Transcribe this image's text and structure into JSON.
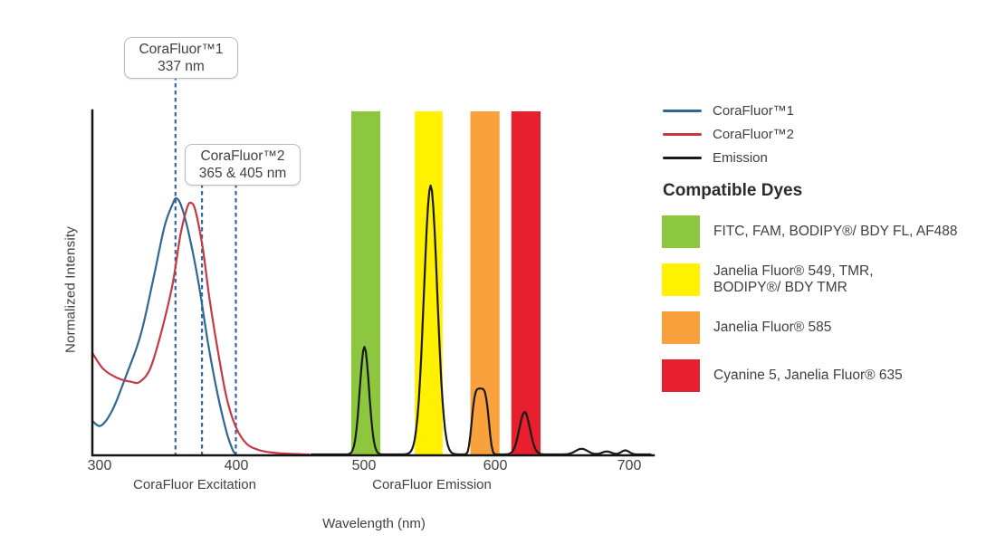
{
  "figure": {
    "y_axis_label": "Normalized Intensity",
    "x_axis_label": "Wavelength (nm)",
    "x_section_labels": {
      "excitation": "CoraFluor Excitation",
      "emission": "CoraFluor Emission"
    },
    "ticks": [
      "300",
      "400",
      "500",
      "600",
      "700"
    ]
  },
  "annotations": [
    {
      "title": "CoraFluor™1",
      "subtitle": "337 nm",
      "lines_nm": [
        357.3
      ]
    },
    {
      "title": "CoraFluor™2",
      "subtitle": "365 & 405 nm",
      "lines_nm": [
        377.3,
        402.9
      ]
    }
  ],
  "legend": {
    "items": [
      {
        "label": "CoraFluor™1",
        "color": "#2F6795"
      },
      {
        "label": "CoraFluor™2",
        "color": "#C63944"
      },
      {
        "label": "Emission",
        "color": "#1A1A1A"
      }
    ]
  },
  "compatible_dyes": {
    "heading": "Compatible Dyes",
    "items": [
      {
        "color": "#8DC63F",
        "label": "FITC, FAM, BODIPY®/ BDY FL, AF488",
        "label2": ""
      },
      {
        "color": "#FFF100",
        "label": "Janelia Fluor® 549, TMR,",
        "label2": "BODIPY®/ BDY TMR"
      },
      {
        "color": "#F9A13C",
        "label": "Janelia Fluor® 585",
        "label2": ""
      },
      {
        "color": "#E8202E",
        "label": "Cyanine 5, Janelia Fluor® 635",
        "label2": ""
      }
    ]
  },
  "chart_data": {
    "type": "line",
    "title": "",
    "xlabel": "Wavelength (nm)",
    "ylabel": "Normalized Intensity",
    "x_range_nm": [
      295,
      717
    ],
    "x_ticks_nm": [
      300,
      400,
      500,
      600,
      700
    ],
    "ylim": [
      0,
      1.05
    ],
    "grid": false,
    "legend_position": "right",
    "axis_color": "#141414",
    "dashed_line_color": "#31699E",
    "excitation_maxima_labels": {
      "CoraFluor1": "337 nm",
      "CoraFluor2": "365 & 405 nm"
    },
    "emission_peaks_nm": [
      500,
      550,
      587,
      621,
      664,
      683,
      697
    ],
    "filter_bands": [
      {
        "dyes": "FITC, FAM, BODIPY®/ BDY FL, AF488",
        "from_nm": 490,
        "to_nm": 512,
        "color": "#8DC63F"
      },
      {
        "dyes": "Janelia Fluor® 549, TMR, BODIPY®/ BDY TMR",
        "from_nm": 538,
        "to_nm": 559,
        "color": "#FFF100"
      },
      {
        "dyes": "Janelia Fluor® 585",
        "from_nm": 580,
        "to_nm": 602,
        "color": "#F9A13C"
      },
      {
        "dyes": "Cyanine 5, Janelia Fluor® 635",
        "from_nm": 611,
        "to_nm": 633,
        "color": "#E8202E"
      }
    ],
    "series": [
      {
        "name": "CoraFluor™1 excitation",
        "color": "#2F6795",
        "points": [
          [
            294.5,
            0.125
          ],
          [
            301,
            0.107
          ],
          [
            310,
            0.168
          ],
          [
            320,
            0.293
          ],
          [
            331,
            0.444
          ],
          [
            341,
            0.663
          ],
          [
            349,
            0.848
          ],
          [
            355,
            0.929
          ],
          [
            358,
            0.953
          ],
          [
            362,
            0.92
          ],
          [
            368,
            0.808
          ],
          [
            375,
            0.63
          ],
          [
            382,
            0.411
          ],
          [
            389,
            0.226
          ],
          [
            396,
            0.081
          ],
          [
            400.5,
            0.017
          ],
          [
            403,
            0
          ]
        ]
      },
      {
        "name": "CoraFluor™2 excitation",
        "color": "#C63944",
        "points": [
          [
            294.5,
            0.378
          ],
          [
            303,
            0.317
          ],
          [
            314,
            0.283
          ],
          [
            324,
            0.27
          ],
          [
            330,
            0.269
          ],
          [
            338,
            0.317
          ],
          [
            346,
            0.444
          ],
          [
            355,
            0.63
          ],
          [
            361,
            0.815
          ],
          [
            366,
            0.916
          ],
          [
            369,
            0.936
          ],
          [
            372.5,
            0.905
          ],
          [
            378,
            0.764
          ],
          [
            383,
            0.579
          ],
          [
            389,
            0.394
          ],
          [
            396,
            0.209
          ],
          [
            403,
            0.101
          ],
          [
            411,
            0.04
          ],
          [
            420,
            0.017
          ],
          [
            430,
            0.007
          ],
          [
            444,
            0.002
          ],
          [
            458,
            0
          ]
        ]
      },
      {
        "name": "Emission",
        "color": "#1A1A1A",
        "peaks": [
          {
            "center_nm": 500,
            "height": 0.4,
            "sigma_nm": 3.5
          },
          {
            "center_nm": 550,
            "height": 1.0,
            "sigma_nm": 5
          },
          {
            "center_nm": 587.5,
            "height": 0.245,
            "sigma_nm": 6,
            "flat_top": true
          },
          {
            "center_nm": 621,
            "height": 0.158,
            "sigma_nm": 4
          },
          {
            "center_nm": 664,
            "height": 0.021,
            "sigma_nm": 4.5
          },
          {
            "center_nm": 683,
            "height": 0.011,
            "sigma_nm": 3.5
          },
          {
            "center_nm": 697,
            "height": 0.015,
            "sigma_nm": 3
          }
        ]
      }
    ]
  }
}
